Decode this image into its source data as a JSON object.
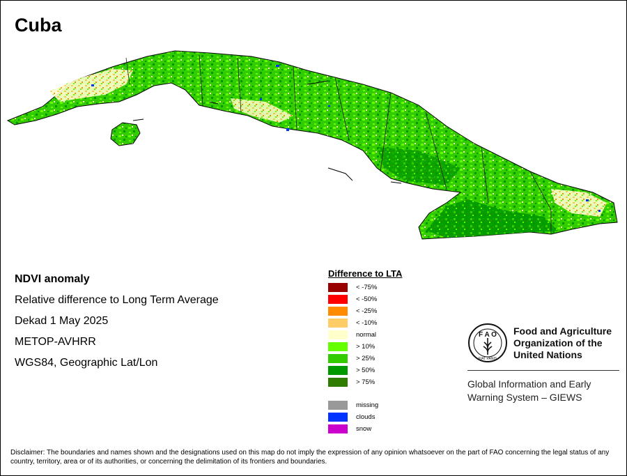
{
  "map": {
    "title": "Cuba"
  },
  "info": {
    "heading": "NDVI anomaly",
    "line1": "Relative difference to Long Term Average",
    "line2": "Dekad 1 May 2025",
    "line3": "METOP-AVHRR",
    "line4": "WGS84, Geographic Lat/Lon"
  },
  "legend": {
    "title": "Difference to LTA",
    "classes": [
      {
        "label": "< -75%",
        "color": "#990000"
      },
      {
        "label": "< -50%",
        "color": "#ff0000"
      },
      {
        "label": "< -25%",
        "color": "#ff8c00"
      },
      {
        "label": "< -10%",
        "color": "#ffcc66"
      },
      {
        "label": "normal",
        "color": "#ffffcc"
      },
      {
        "label": "> 10%",
        "color": "#66ff00"
      },
      {
        "label": "> 25%",
        "color": "#33cc00"
      },
      {
        "label": "> 50%",
        "color": "#009900"
      },
      {
        "label": "> 75%",
        "color": "#2e7d00"
      }
    ],
    "other": [
      {
        "label": "missing",
        "color": "#999999"
      },
      {
        "label": "clouds",
        "color": "#0033ff"
      },
      {
        "label": "snow",
        "color": "#cc00cc"
      }
    ]
  },
  "logo": {
    "fao_letters": "F A O",
    "motto": "FIAT PANIS",
    "org_line1": "Food and Agriculture",
    "org_line2": "Organization of the",
    "org_line3": "United Nations",
    "system_line1": "Global Information and Early",
    "system_line2": "Warning System – GIEWS"
  },
  "disclaimer": "Disclaimer: The boundaries and names shown and the designations used on this map do not imply the expression of any opinion whatsoever on the part of FAO concerning the legal status of any country, territory, area or of its authorities, or concerning the delimitation of its frontiers and boundaries."
}
